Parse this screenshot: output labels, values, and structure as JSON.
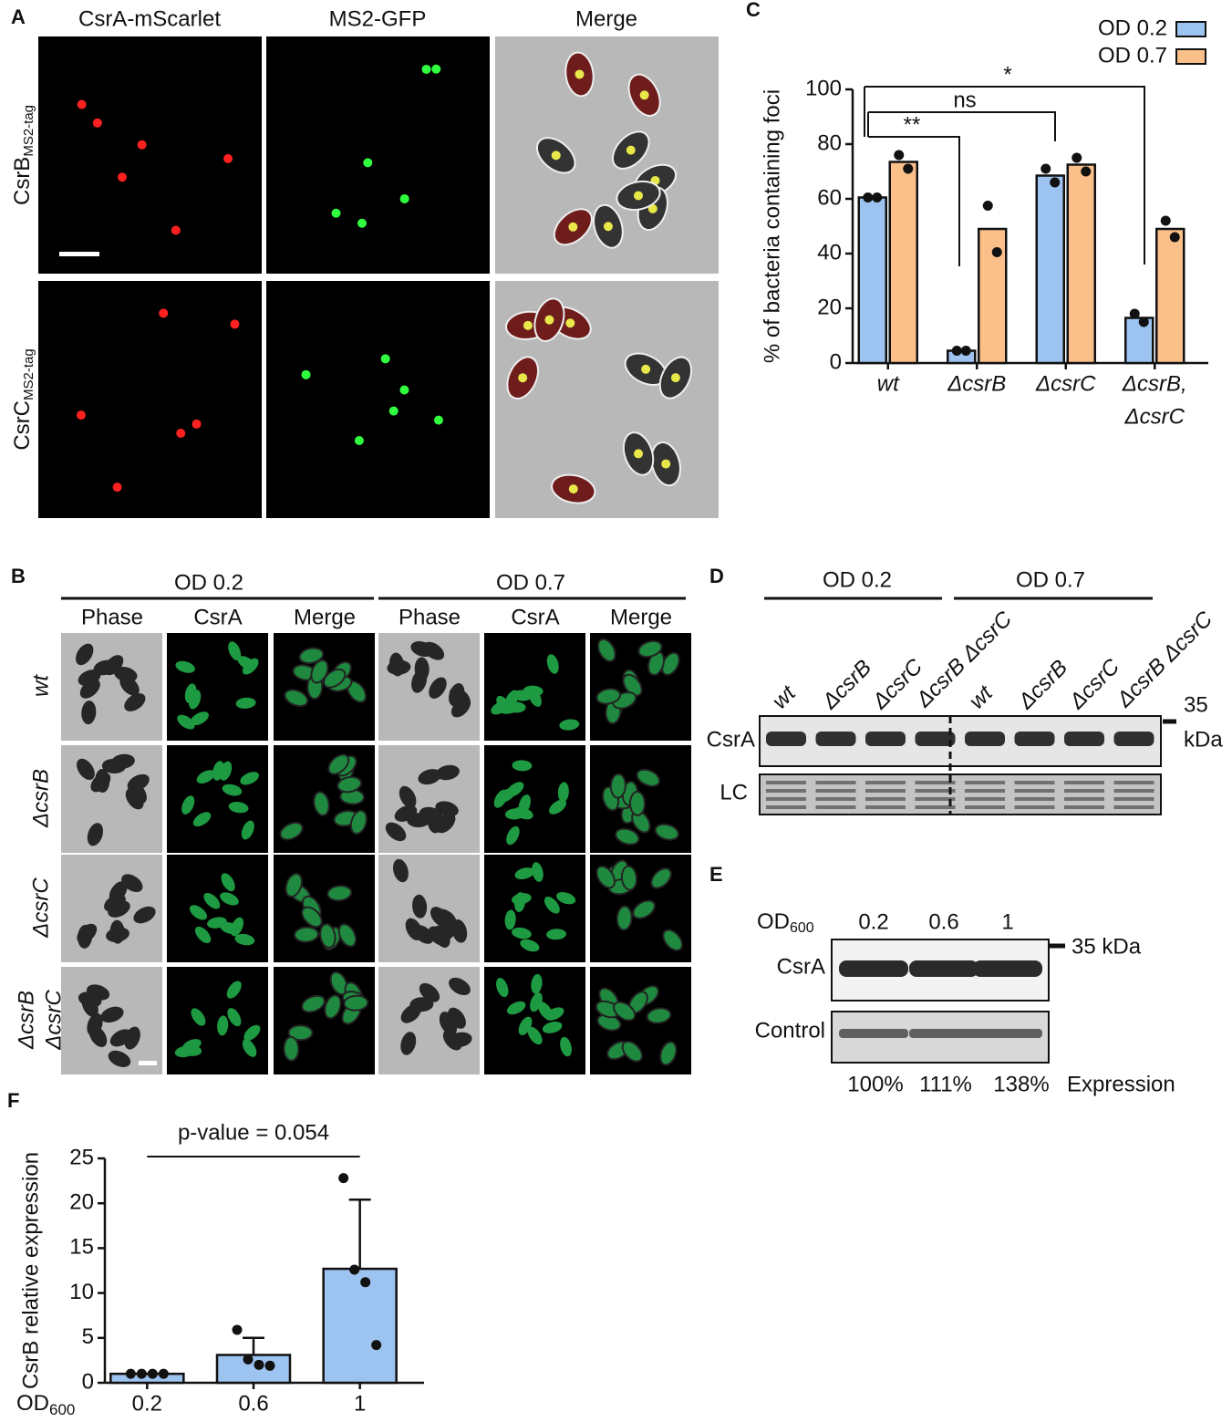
{
  "panel_labels": [
    "A",
    "B",
    "C",
    "D",
    "E",
    "F"
  ],
  "panel_a": {
    "columns": [
      "CsrA-mScarlet",
      "MS2-GFP",
      "Merge"
    ],
    "rows": [
      {
        "main": "CsrB",
        "sub": "MS2-tag"
      },
      {
        "main": "CsrC",
        "sub": "MS2-tag"
      }
    ]
  },
  "panel_b": {
    "groups": [
      "OD 0.2",
      "OD 0.7"
    ],
    "columns": [
      "Phase",
      "CsrA",
      "Merge",
      "Phase",
      "CsrA",
      "Merge"
    ],
    "rows": [
      [
        "wt"
      ],
      [
        "ΔcsrB"
      ],
      [
        "ΔcsrC"
      ],
      [
        "ΔcsrB",
        "ΔcsrC"
      ]
    ]
  },
  "panel_d": {
    "groups": [
      "OD 0.2",
      "OD 0.7"
    ],
    "lanes": [
      "wt",
      "ΔcsrB",
      "ΔcsrC",
      "ΔcsrB ΔcsrC",
      "wt",
      "ΔcsrB",
      "ΔcsrC",
      "ΔcsrB ΔcsrC"
    ],
    "marker": [
      "35",
      "kDa"
    ],
    "bands": [
      "CsrA",
      "LC"
    ]
  },
  "panel_e": {
    "od": {
      "main": "OD",
      "sub": "600"
    },
    "lanes": [
      "0.2",
      "0.6",
      "1"
    ],
    "marker": "35 kDa",
    "bands": [
      "CsrA",
      "Control"
    ],
    "expression": [
      "100%",
      "111%",
      "138%"
    ],
    "expression_label": "Expression"
  },
  "chart_data": [
    {
      "type": "bar",
      "ylabel": "% of bacteria containing foci",
      "categories": [
        [
          "wt"
        ],
        [
          "ΔcsrB"
        ],
        [
          "ΔcsrC"
        ],
        [
          "ΔcsrB,",
          "ΔcsrC"
        ]
      ],
      "series": [
        {
          "name": "OD 0.2",
          "color": "#9dc3f0",
          "values": [
            60.5,
            4.5,
            68.5,
            16.5
          ],
          "points": [
            [
              60.5,
              60.5
            ],
            [
              4.5,
              4.5
            ],
            [
              71,
              66
            ],
            [
              18,
              15
            ]
          ]
        },
        {
          "name": "OD 0.7",
          "color": "#fbc08a",
          "values": [
            73.5,
            49,
            72.5,
            49
          ],
          "points": [
            [
              76,
              71
            ],
            [
              57.5,
              40.5
            ],
            [
              75,
              70
            ],
            [
              52,
              46
            ]
          ]
        }
      ],
      "ylim": [
        0,
        100
      ],
      "yticks": [
        0,
        20,
        40,
        60,
        80,
        100
      ],
      "annotations": [
        "**",
        "ns",
        "*"
      ],
      "legend": "upper right"
    },
    {
      "type": "bar",
      "ylabel": "CsrB relative expression",
      "xlabel": "OD",
      "xlabel_sub": "600",
      "categories": [
        "0.2",
        "0.6",
        "1"
      ],
      "values": [
        1,
        3.1,
        12.7
      ],
      "errors": [
        0,
        1.9,
        7.7
      ],
      "points": [
        [
          1,
          1,
          1,
          1
        ],
        [
          5.9,
          2.6,
          2.0,
          1.9
        ],
        [
          22.8,
          12.6,
          11.2,
          4.2
        ]
      ],
      "color": "#9dc3f0",
      "ylim": [
        0,
        25
      ],
      "yticks": [
        0,
        5,
        10,
        15,
        20,
        25
      ],
      "annotation": "p-value = 0.054"
    }
  ]
}
